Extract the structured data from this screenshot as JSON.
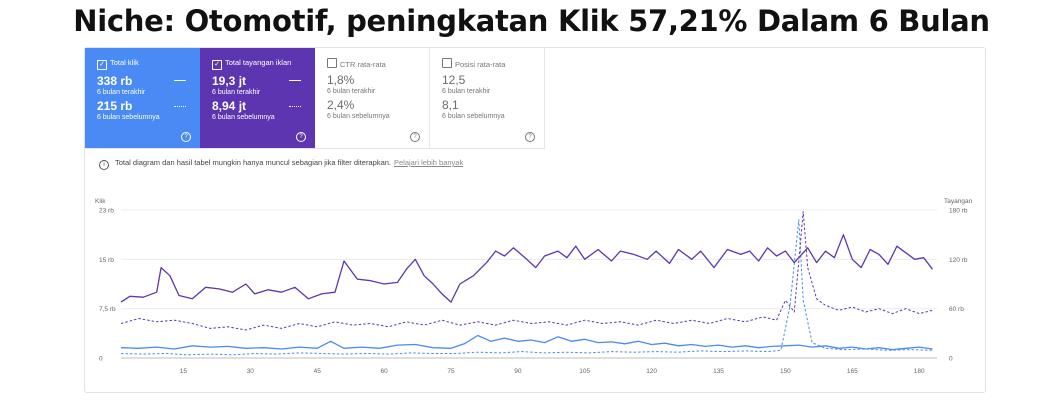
{
  "headline": "Niche: Otomotif, peningkatan Klik 57,21% Dalam 6 Bulan",
  "tiles": [
    {
      "title": "Total klik",
      "checked": true,
      "value_current": "338 rb",
      "label_current": "6 bulan terakhir",
      "value_previous": "215 rb",
      "label_previous": "6 bulan sebelumnya",
      "color": "#4a8af4"
    },
    {
      "title": "Total tayangan iklan",
      "checked": true,
      "value_current": "19,3 jt",
      "label_current": "6 bulan terakhir",
      "value_previous": "8,94 jt",
      "label_previous": "6 bulan sebelumnya",
      "color": "#5e35b1"
    },
    {
      "title": "CTR rata-rata",
      "checked": false,
      "value_current": "1,8%",
      "label_current": "6 bulan terakhir",
      "value_previous": "2,4%",
      "label_previous": "6 bulan sebelumnya"
    },
    {
      "title": "Posisi rata-rata",
      "checked": false,
      "value_current": "12,5",
      "label_current": "6 bulan terakhir",
      "value_previous": "8,1",
      "label_previous": "6 bulan sebelumnya"
    }
  ],
  "notice": {
    "text": "Total diagram dan hasil tabel mungkin hanya muncul sebagian jika filter diterapkan.",
    "link": "Pelajari lebih banyak"
  },
  "icons": {
    "info": "info-icon",
    "help": "help-icon",
    "checkbox": "checkbox-icon"
  },
  "chart_data": {
    "type": "line",
    "left_axis_label": "Klik",
    "right_axis_label": "Tayangan",
    "left_ticks": [
      "0",
      "7,5 rb",
      "15 rb",
      "23 rb"
    ],
    "right_ticks": [
      "0",
      "60 rb",
      "120 rb",
      "180 rb"
    ],
    "x_ticks": [
      "15",
      "30",
      "45",
      "60",
      "75",
      "90",
      "105",
      "120",
      "135",
      "150",
      "165",
      "180"
    ],
    "xlim": [
      1,
      184
    ],
    "ylim_left": [
      0,
      23000
    ],
    "ylim_right": [
      0,
      180000
    ],
    "series_style": {
      "impressions_current": {
        "color": "#5e35b1",
        "dashed": false,
        "axis": "right"
      },
      "impressions_previous": {
        "color": "#5e35b1",
        "dashed": true,
        "axis": "right"
      },
      "clicks_current": {
        "color": "#4a8af4",
        "dashed": false,
        "axis": "left"
      },
      "clicks_previous": {
        "color": "#4a8af4",
        "dashed": true,
        "axis": "left"
      }
    },
    "impressions_current": [
      [
        1,
        68000
      ],
      [
        3,
        75000
      ],
      [
        6,
        74000
      ],
      [
        9,
        80000
      ],
      [
        10,
        110000
      ],
      [
        12,
        100000
      ],
      [
        14,
        76000
      ],
      [
        17,
        72000
      ],
      [
        20,
        86000
      ],
      [
        23,
        84000
      ],
      [
        26,
        80000
      ],
      [
        29,
        90000
      ],
      [
        31,
        78000
      ],
      [
        34,
        83000
      ],
      [
        37,
        80000
      ],
      [
        40,
        86000
      ],
      [
        43,
        72000
      ],
      [
        46,
        78000
      ],
      [
        49,
        80000
      ],
      [
        51,
        118000
      ],
      [
        54,
        96000
      ],
      [
        57,
        94000
      ],
      [
        60,
        90000
      ],
      [
        63,
        92000
      ],
      [
        65,
        108000
      ],
      [
        67,
        120000
      ],
      [
        69,
        100000
      ],
      [
        71,
        90000
      ],
      [
        73,
        78000
      ],
      [
        75,
        68000
      ],
      [
        77,
        90000
      ],
      [
        80,
        100000
      ],
      [
        83,
        116000
      ],
      [
        85,
        130000
      ],
      [
        87,
        124000
      ],
      [
        89,
        134000
      ],
      [
        92,
        120000
      ],
      [
        94,
        110000
      ],
      [
        96,
        124000
      ],
      [
        99,
        130000
      ],
      [
        101,
        122000
      ],
      [
        103,
        136000
      ],
      [
        105,
        120000
      ],
      [
        108,
        132000
      ],
      [
        111,
        118000
      ],
      [
        113,
        130000
      ],
      [
        116,
        126000
      ],
      [
        119,
        120000
      ],
      [
        121,
        130000
      ],
      [
        124,
        115000
      ],
      [
        126,
        132000
      ],
      [
        129,
        120000
      ],
      [
        131,
        130000
      ],
      [
        134,
        110000
      ],
      [
        137,
        132000
      ],
      [
        140,
        126000
      ],
      [
        142,
        130000
      ],
      [
        144,
        118000
      ],
      [
        146,
        134000
      ],
      [
        148,
        124000
      ],
      [
        150,
        130000
      ],
      [
        152,
        116000
      ],
      [
        155,
        134000
      ],
      [
        157,
        116000
      ],
      [
        159,
        130000
      ],
      [
        161,
        122000
      ],
      [
        163,
        150000
      ],
      [
        165,
        120000
      ],
      [
        167,
        110000
      ],
      [
        169,
        132000
      ],
      [
        171,
        126000
      ],
      [
        173,
        114000
      ],
      [
        175,
        136000
      ],
      [
        177,
        128000
      ],
      [
        179,
        120000
      ],
      [
        181,
        122000
      ],
      [
        183,
        108000
      ]
    ],
    "impressions_previous": [
      [
        1,
        42000
      ],
      [
        5,
        48000
      ],
      [
        9,
        44000
      ],
      [
        13,
        46000
      ],
      [
        17,
        42000
      ],
      [
        21,
        36000
      ],
      [
        25,
        38000
      ],
      [
        29,
        34000
      ],
      [
        33,
        40000
      ],
      [
        37,
        36000
      ],
      [
        41,
        42000
      ],
      [
        45,
        38000
      ],
      [
        49,
        44000
      ],
      [
        53,
        40000
      ],
      [
        57,
        42000
      ],
      [
        61,
        38000
      ],
      [
        65,
        44000
      ],
      [
        69,
        40000
      ],
      [
        73,
        46000
      ],
      [
        77,
        40000
      ],
      [
        81,
        44000
      ],
      [
        85,
        40000
      ],
      [
        89,
        46000
      ],
      [
        93,
        42000
      ],
      [
        97,
        44000
      ],
      [
        101,
        40000
      ],
      [
        105,
        46000
      ],
      [
        109,
        42000
      ],
      [
        113,
        44000
      ],
      [
        117,
        40000
      ],
      [
        121,
        46000
      ],
      [
        125,
        42000
      ],
      [
        129,
        46000
      ],
      [
        133,
        42000
      ],
      [
        137,
        48000
      ],
      [
        141,
        44000
      ],
      [
        145,
        50000
      ],
      [
        148,
        46000
      ],
      [
        150,
        70000
      ],
      [
        152,
        56000
      ],
      [
        154,
        178000
      ],
      [
        155,
        110000
      ],
      [
        157,
        72000
      ],
      [
        159,
        64000
      ],
      [
        162,
        58000
      ],
      [
        165,
        62000
      ],
      [
        168,
        56000
      ],
      [
        171,
        60000
      ],
      [
        174,
        54000
      ],
      [
        177,
        60000
      ],
      [
        180,
        54000
      ],
      [
        183,
        58000
      ]
    ],
    "clicks_current": [
      [
        1,
        1600
      ],
      [
        5,
        1500
      ],
      [
        9,
        1700
      ],
      [
        13,
        1400
      ],
      [
        17,
        1900
      ],
      [
        21,
        1700
      ],
      [
        25,
        1800
      ],
      [
        29,
        1500
      ],
      [
        33,
        1600
      ],
      [
        37,
        1400
      ],
      [
        41,
        1700
      ],
      [
        45,
        1500
      ],
      [
        48,
        2600
      ],
      [
        51,
        1500
      ],
      [
        55,
        1700
      ],
      [
        59,
        1500
      ],
      [
        63,
        2000
      ],
      [
        67,
        2100
      ],
      [
        71,
        1600
      ],
      [
        75,
        1500
      ],
      [
        78,
        2200
      ],
      [
        81,
        3500
      ],
      [
        84,
        2600
      ],
      [
        87,
        3100
      ],
      [
        90,
        2600
      ],
      [
        93,
        2800
      ],
      [
        96,
        2400
      ],
      [
        99,
        3300
      ],
      [
        102,
        2600
      ],
      [
        105,
        2900
      ],
      [
        108,
        2400
      ],
      [
        111,
        2500
      ],
      [
        114,
        2200
      ],
      [
        117,
        2600
      ],
      [
        120,
        2100
      ],
      [
        123,
        2300
      ],
      [
        126,
        1900
      ],
      [
        129,
        2100
      ],
      [
        132,
        1800
      ],
      [
        135,
        2000
      ],
      [
        138,
        1700
      ],
      [
        141,
        1900
      ],
      [
        144,
        1600
      ],
      [
        147,
        1800
      ],
      [
        150,
        1900
      ],
      [
        153,
        2000
      ],
      [
        156,
        1700
      ],
      [
        159,
        1900
      ],
      [
        162,
        1500
      ],
      [
        165,
        1700
      ],
      [
        168,
        1400
      ],
      [
        171,
        1600
      ],
      [
        174,
        1300
      ],
      [
        177,
        1500
      ],
      [
        180,
        1700
      ],
      [
        183,
        1400
      ]
    ],
    "clicks_previous": [
      [
        1,
        700
      ],
      [
        6,
        600
      ],
      [
        11,
        700
      ],
      [
        16,
        500
      ],
      [
        21,
        600
      ],
      [
        26,
        500
      ],
      [
        31,
        700
      ],
      [
        36,
        600
      ],
      [
        41,
        800
      ],
      [
        46,
        700
      ],
      [
        51,
        600
      ],
      [
        56,
        700
      ],
      [
        61,
        600
      ],
      [
        66,
        800
      ],
      [
        71,
        700
      ],
      [
        76,
        700
      ],
      [
        81,
        900
      ],
      [
        86,
        800
      ],
      [
        91,
        1000
      ],
      [
        96,
        800
      ],
      [
        101,
        900
      ],
      [
        106,
        800
      ],
      [
        111,
        1000
      ],
      [
        116,
        900
      ],
      [
        121,
        1000
      ],
      [
        126,
        900
      ],
      [
        131,
        1100
      ],
      [
        136,
        1000
      ],
      [
        141,
        1100
      ],
      [
        146,
        1000
      ],
      [
        149,
        1200
      ],
      [
        151,
        8000
      ],
      [
        153,
        21500
      ],
      [
        154,
        9000
      ],
      [
        156,
        2400
      ],
      [
        159,
        1500
      ],
      [
        163,
        1300
      ],
      [
        168,
        1400
      ],
      [
        173,
        1200
      ],
      [
        178,
        1300
      ],
      [
        183,
        1200
      ]
    ]
  }
}
